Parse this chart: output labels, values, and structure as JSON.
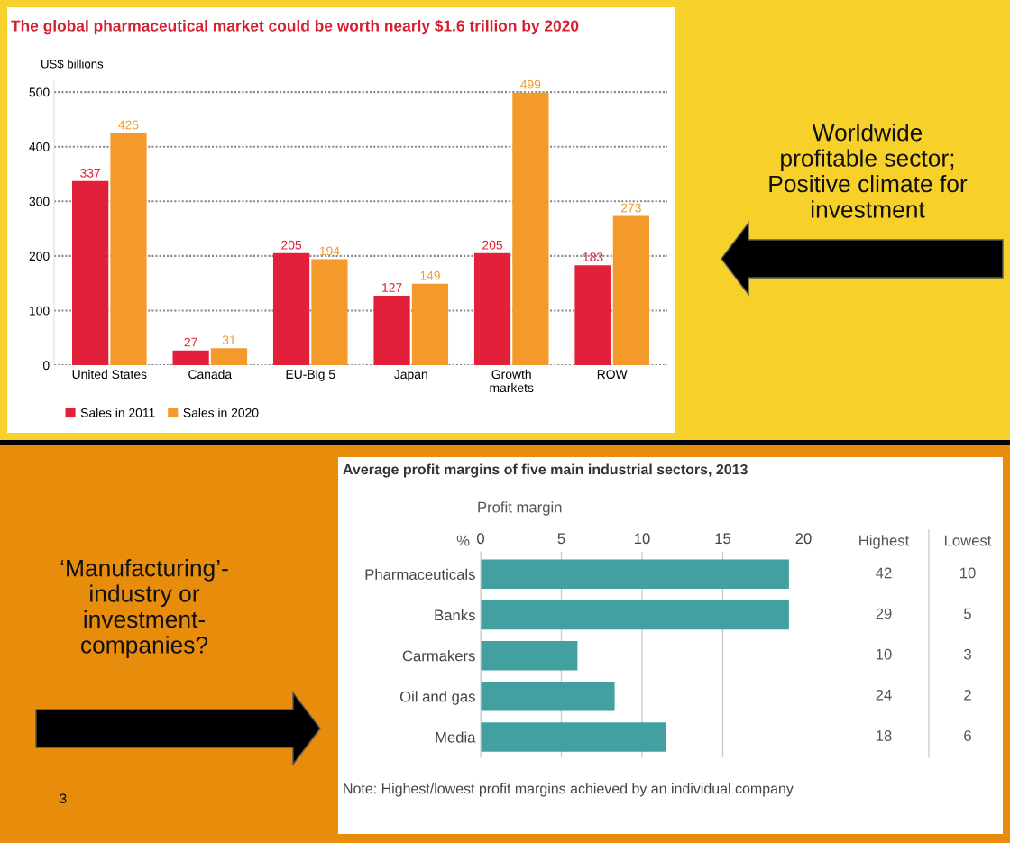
{
  "chart_data": [
    {
      "type": "bar",
      "title": "The global pharmaceutical market could be worth nearly $1.6 trillion by 2020",
      "ylabel": "US$ billions",
      "categories": [
        "United States",
        "Canada",
        "EU-Big 5",
        "Japan",
        "Growth\nmarkets",
        "ROW"
      ],
      "series": [
        {
          "name": "Sales in 2011",
          "color": "#e2203a",
          "values": [
            337,
            27,
            205,
            127,
            205,
            183
          ]
        },
        {
          "name": "Sales in 2020",
          "color": "#f39a2a",
          "values": [
            425,
            31,
            194,
            149,
            499,
            273
          ]
        }
      ],
      "ylim": [
        0,
        520
      ],
      "yticks": [
        0,
        100,
        200,
        300,
        400,
        500
      ],
      "grid": "y",
      "legend": "bottom left",
      "data_labels": true
    },
    {
      "type": "bar",
      "orientation": "horizontal",
      "title": "Average profit margins of five main industrial sectors, 2013",
      "xlabel": "Profit margin",
      "categories": [
        "Pharmaceuticals",
        "Banks",
        "Carmakers",
        "Oil and gas",
        "Media"
      ],
      "values": [
        19.1,
        19.1,
        6,
        8.3,
        11.5
      ],
      "color": "#43a0a0",
      "xlim": [
        0,
        20
      ],
      "xticks": [
        0,
        5,
        10,
        15,
        20
      ],
      "grid": "x",
      "annotations": [
        "%",
        "Highest",
        "42",
        "29",
        "10",
        "24",
        "18",
        "Lowest",
        "10",
        "5",
        "3",
        "2",
        "6",
        "Note: Highest/lowest profit margins achieved by an individual company"
      ]
    },
    {
      "type": "other",
      "annotations": [
        "Worldwide\nprofitable sector;\nPositive climate for\ninvestment",
        "‘Manufacturing’-\nindustry or\ninvestment-\ncompanies?",
        "3"
      ]
    }
  ]
}
